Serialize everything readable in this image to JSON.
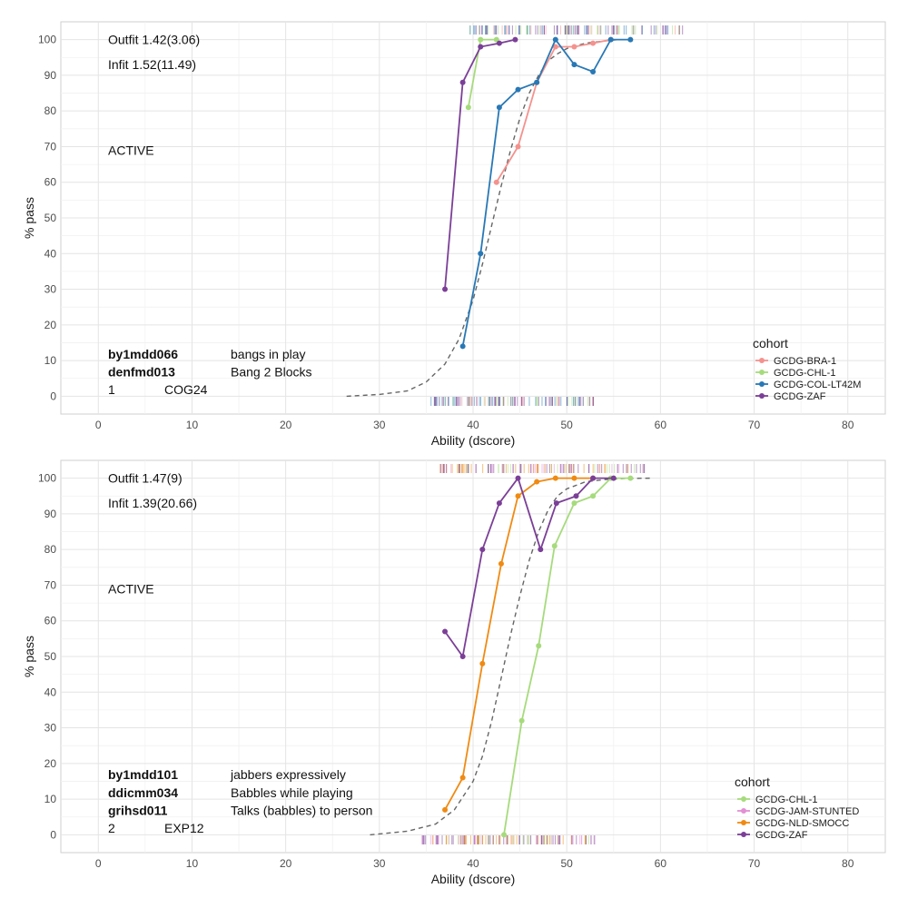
{
  "chart_data": [
    {
      "type": "line",
      "xlabel": "Ability (dscore)",
      "ylabel": "% pass",
      "xlim": [
        -4,
        84
      ],
      "ylim": [
        -5,
        105
      ],
      "x_ticks": [
        0,
        10,
        20,
        30,
        40,
        50,
        60,
        70,
        80
      ],
      "y_ticks": [
        0,
        10,
        20,
        30,
        40,
        50,
        60,
        70,
        80,
        90,
        100
      ],
      "grid": true,
      "legend_placement": "right-bottom",
      "legend_title": "cohort",
      "fit_text": {
        "outfit": "Outfit 1.42(3.06)",
        "infit": "Infit  1.52(11.49)"
      },
      "status_text": "ACTIVE",
      "items": [
        {
          "code": "by1mdd066",
          "label": "bangs in play"
        },
        {
          "code": "denfmd013",
          "label": "Bang 2 Blocks"
        }
      ],
      "footer": {
        "number": "1",
        "tag": "COG24"
      },
      "reference_curve": {
        "x": [
          26.5,
          30,
          33,
          35,
          37,
          38.5,
          40,
          41,
          42,
          43,
          44,
          45,
          46,
          47,
          48,
          49,
          50,
          52,
          54,
          55.5
        ],
        "y": [
          0,
          0.5,
          1.5,
          4,
          9,
          16,
          27,
          37,
          48,
          59,
          69,
          78,
          85,
          90,
          94,
          96,
          97.5,
          99,
          99.6,
          100
        ]
      },
      "series": [
        {
          "name": "GCDG-BRA-1",
          "color": "#F4928E",
          "x": [
            42.5,
            44.8,
            46.8,
            48.8,
            50.8,
            52.8,
            54.7
          ],
          "y": [
            60,
            70,
            88,
            98,
            98,
            99,
            100
          ]
        },
        {
          "name": "GCDG-CHL-1",
          "color": "#A6DB7C",
          "x": [
            39.5,
            40.8,
            42.5
          ],
          "y": [
            81,
            100,
            100
          ]
        },
        {
          "name": "GCDG-COL-LT42M",
          "color": "#2878B5",
          "x": [
            38.9,
            40.8,
            42.8,
            44.8,
            46.8,
            48.8,
            50.8,
            52.8,
            54.7,
            56.8
          ],
          "y": [
            14,
            40,
            81,
            86,
            88,
            100,
            93,
            91,
            100,
            100
          ]
        },
        {
          "name": "GCDG-ZAF",
          "color": "#7B3F97",
          "x": [
            37.0,
            38.9,
            40.8,
            42.8,
            44.5
          ],
          "y": [
            30,
            88,
            98,
            99,
            100
          ]
        }
      ]
    },
    {
      "type": "line",
      "xlabel": "Ability (dscore)",
      "ylabel": "% pass",
      "xlim": [
        -4,
        84
      ],
      "ylim": [
        -5,
        105
      ],
      "x_ticks": [
        0,
        10,
        20,
        30,
        40,
        50,
        60,
        70,
        80
      ],
      "y_ticks": [
        0,
        10,
        20,
        30,
        40,
        50,
        60,
        70,
        80,
        90,
        100
      ],
      "grid": true,
      "legend_placement": "right-bottom",
      "legend_title": "cohort",
      "fit_text": {
        "outfit": "Outfit 1.47(9)",
        "infit": "Infit  1.39(20.66)"
      },
      "status_text": "ACTIVE",
      "items": [
        {
          "code": "by1mdd101",
          "label": "jabbers expressively"
        },
        {
          "code": "ddicmm034",
          "label": "Babbles while playing"
        },
        {
          "code": "grihsd011",
          "label": "Talks (babbles) to person"
        }
      ],
      "footer": {
        "number": "2",
        "tag": "EXP12"
      },
      "reference_curve": {
        "x": [
          29,
          33,
          36,
          38,
          40,
          41,
          42,
          43,
          44,
          45,
          46,
          47,
          48,
          49,
          50,
          52,
          54,
          56,
          59
        ],
        "y": [
          0,
          1,
          3,
          7,
          15,
          22,
          32,
          44,
          56,
          67,
          77,
          85,
          91,
          95,
          97,
          99,
          99.6,
          99.9,
          100
        ]
      },
      "series": [
        {
          "name": "GCDG-CHL-1",
          "color": "#A6DB7C",
          "x": [
            43.3,
            45.2,
            47.0,
            48.7,
            50.8,
            52.8,
            54.7,
            56.8
          ],
          "y": [
            0,
            32,
            53,
            81,
            93,
            95,
            100,
            100
          ]
        },
        {
          "name": "GCDG-JAM-STUNTED",
          "color": "#E38FD4",
          "x": [],
          "y": []
        },
        {
          "name": "GCDG-NLD-SMOCC",
          "color": "#F08A12",
          "x": [
            37.0,
            38.9,
            41.0,
            43.0,
            44.8,
            46.8,
            48.8,
            50.8,
            52.8
          ],
          "y": [
            7,
            16,
            48,
            76,
            95,
            99,
            100,
            100,
            100
          ]
        },
        {
          "name": "GCDG-ZAF",
          "color": "#7B3F97",
          "x": [
            37.0,
            38.9,
            41.0,
            42.8,
            44.8,
            47.2,
            48.9,
            51.0,
            52.8,
            55.0
          ],
          "y": [
            57,
            50,
            80,
            93,
            100,
            80,
            93,
            95,
            100,
            100
          ]
        }
      ]
    }
  ]
}
